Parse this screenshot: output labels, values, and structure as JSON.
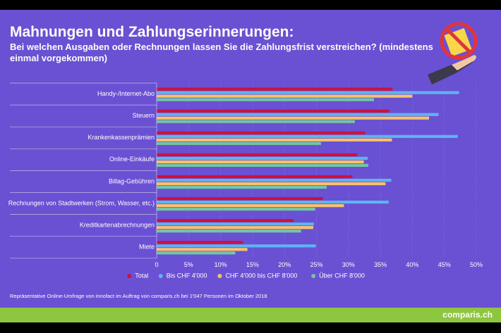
{
  "chart_data": {
    "type": "hbar",
    "title": "Mahnungen und Zahlungserinnerungen:",
    "subtitle": "Bei welchen Ausgaben oder Rechnungen lassen Sie die Zahlungsfrist verstreichen? (mindestens einmal vorgekommen)",
    "categories": [
      "Handy-/Internet-Abo",
      "Steuern",
      "Krankenkassenprämien",
      "Online-Einkäufe",
      "Billag-Gebühren",
      "Rechnungen von Stadtwerken (Strom, Wasser, etc.)",
      "Kreditkartenabrechnungen",
      "Miete"
    ],
    "series": [
      {
        "name": "Total",
        "color": "#d1103a",
        "values": [
          36.9,
          36.4,
          32.6,
          31.4,
          30.6,
          26.0,
          21.4,
          13.5
        ]
      },
      {
        "name": "Bis CHF 4'000",
        "color": "#5cb4f2",
        "values": [
          47.3,
          44.1,
          47.1,
          33.0,
          36.7,
          36.3,
          24.6,
          24.9
        ]
      },
      {
        "name": "CHF 4'000 bis CHF 8'000",
        "color": "#f6c36a",
        "values": [
          40.0,
          42.6,
          36.8,
          32.4,
          35.8,
          29.3,
          24.5,
          14.2
        ]
      },
      {
        "name": "Über CHF 8'000",
        "color": "#72c6a2",
        "values": [
          34.0,
          31.0,
          25.7,
          33.1,
          26.6,
          24.8,
          22.6,
          12.3
        ]
      }
    ],
    "xlim": [
      0,
      50
    ],
    "xticks": [
      0,
      {
        "value": 5,
        "label": "5%"
      },
      {
        "value": 10,
        "label": "10%"
      },
      {
        "value": 15,
        "label": "15%"
      },
      {
        "value": 20,
        "label": "20%"
      },
      {
        "value": 25,
        "label": "25%"
      },
      {
        "value": 30,
        "label": "30%"
      },
      {
        "value": 35,
        "label": "35%"
      },
      {
        "value": 40,
        "label": "40%"
      },
      {
        "value": 45,
        "label": "45%"
      },
      {
        "value": 50,
        "label": "50%"
      }
    ],
    "grid": true,
    "legend": "bottom",
    "note": "Repräsentative Online-Umfrage von innofact im Auftrag von comparis.ch bei 1'047 Personen im Oktober 2018",
    "brand": "comparis.ch"
  }
}
